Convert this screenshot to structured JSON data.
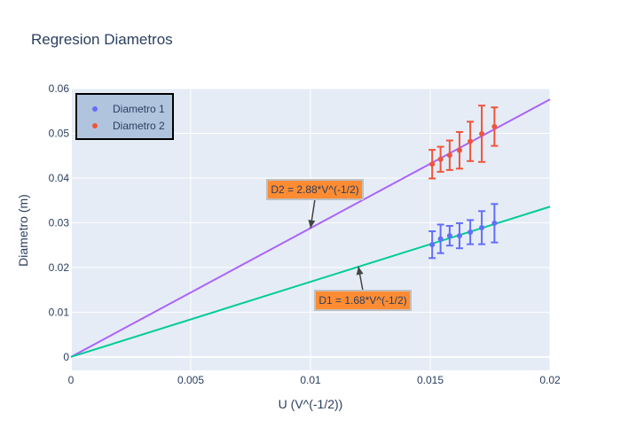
{
  "chart_data": {
    "type": "scatter",
    "title": "Regresion Diametros",
    "xlabel": "U (V^(-1/2))",
    "ylabel": "Diametro (m)",
    "xlim": [
      0,
      0.02
    ],
    "ylim": [
      -0.003,
      0.06
    ],
    "xticks": [
      0,
      0.005,
      0.01,
      0.015,
      0.02
    ],
    "xtick_labels": [
      "0",
      "0.005",
      "0.01",
      "0.015",
      "0.02"
    ],
    "yticks": [
      0,
      0.01,
      0.02,
      0.03,
      0.04,
      0.05,
      0.06
    ],
    "ytick_labels": [
      "0",
      "0.01",
      "0.02",
      "0.03",
      "0.04",
      "0.05",
      "0.06"
    ],
    "grid": true,
    "legend_position": "top-left",
    "series": [
      {
        "name": "Diametro 1",
        "color": "#636efa",
        "x": [
          0.01508,
          0.01543,
          0.01581,
          0.01622,
          0.01667,
          0.01715,
          0.01768
        ],
        "y": [
          0.0251,
          0.0264,
          0.0271,
          0.0271,
          0.0279,
          0.0289,
          0.0299
        ],
        "error": [
          0.003,
          0.0032,
          0.0022,
          0.0028,
          0.0027,
          0.0037,
          0.0043
        ]
      },
      {
        "name": "Diametro 2",
        "color": "#ef553b",
        "x": [
          0.01508,
          0.01543,
          0.01581,
          0.01622,
          0.01667,
          0.01715,
          0.01768
        ],
        "y": [
          0.0431,
          0.0442,
          0.0451,
          0.0462,
          0.0482,
          0.0499,
          0.0515
        ],
        "error": [
          0.0032,
          0.0028,
          0.0033,
          0.0041,
          0.0044,
          0.0063,
          0.0043
        ]
      }
    ],
    "fit_lines": [
      {
        "slope": 2.88,
        "color": "#ab63fa"
      },
      {
        "slope": 1.68,
        "color": "#00cc96"
      }
    ],
    "annotations": [
      {
        "text": "D2 = 2.88*V^(-1/2)",
        "x": 0.01,
        "y": 0.0288
      },
      {
        "text": "D1 = 1.68*V^(-1/2)",
        "x": 0.012,
        "y": 0.0202
      }
    ]
  }
}
